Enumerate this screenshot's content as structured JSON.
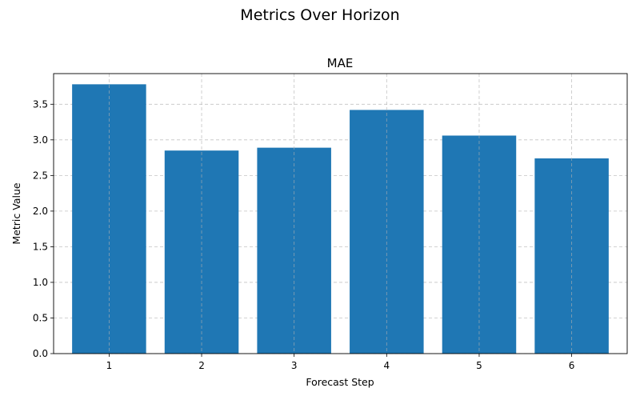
{
  "suptitle": "Metrics Over Horizon",
  "colors": {
    "bar": "#1f77b4"
  },
  "chart_data": {
    "type": "bar",
    "title": "MAE",
    "xlabel": "Forecast Step",
    "ylabel": "Metric Value",
    "categories": [
      "1",
      "2",
      "3",
      "4",
      "5",
      "6"
    ],
    "values": [
      3.78,
      2.85,
      2.89,
      3.42,
      3.06,
      2.74
    ],
    "ylim": [
      0,
      3.93
    ],
    "yticks": [
      0.0,
      0.5,
      1.0,
      1.5,
      2.0,
      2.5,
      3.0,
      3.5
    ],
    "ytick_labels": [
      "0.0",
      "0.5",
      "1.0",
      "1.5",
      "2.0",
      "2.5",
      "3.0",
      "3.5"
    ],
    "grid": true,
    "legend": "none"
  }
}
